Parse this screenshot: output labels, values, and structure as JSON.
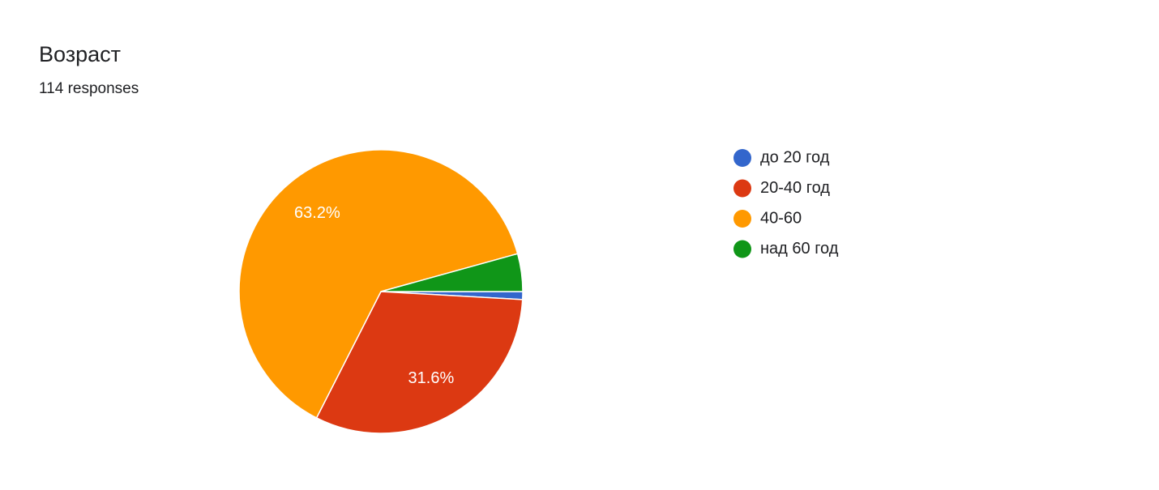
{
  "chart_data": {
    "type": "pie",
    "title": "Возраст",
    "subtitle": "114 responses",
    "categories": [
      "до 20 год",
      "20-40 год",
      "40-60",
      "над 60 год"
    ],
    "values": [
      0.9,
      31.6,
      63.2,
      4.3
    ],
    "value_labels": [
      null,
      "31.6%",
      "63.2%",
      null
    ],
    "colors": [
      "#3366cc",
      "#dc3912",
      "#ff9900",
      "#109618"
    ],
    "legend": "right"
  }
}
